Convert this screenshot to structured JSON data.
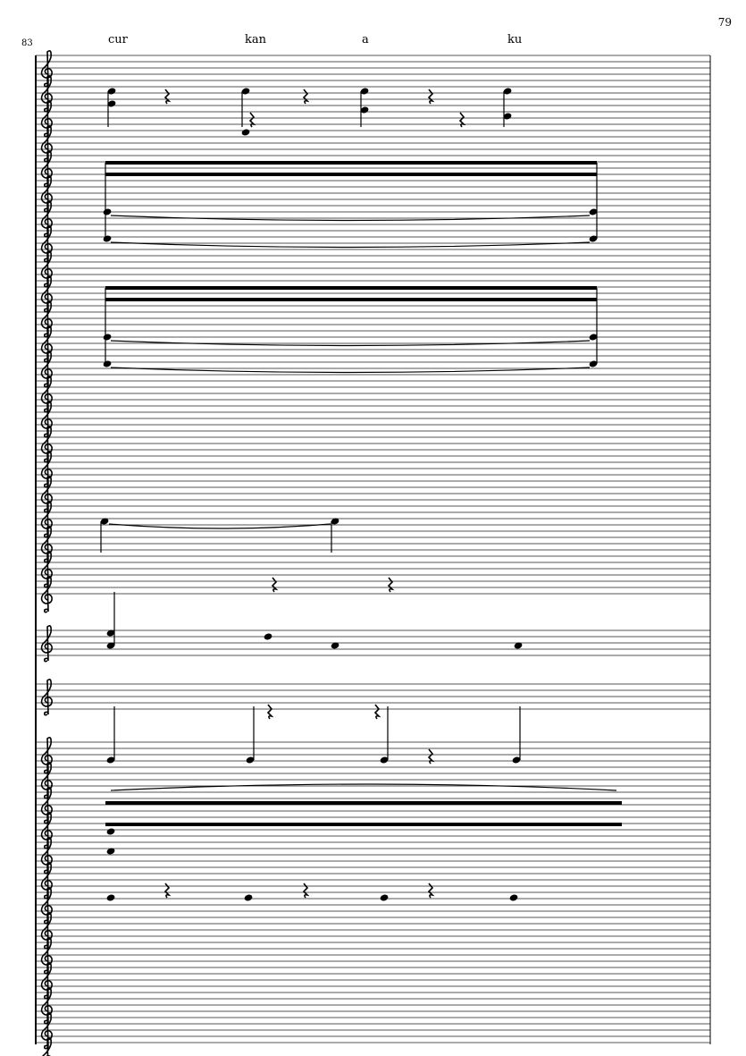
{
  "page": {
    "number": "79"
  },
  "system": {
    "measure_number": "83"
  },
  "lyrics": [
    "cur",
    "kan",
    "a",
    "ku"
  ],
  "colors": {
    "ink": "#000000",
    "staff_line": "#555555",
    "background": "#ffffff"
  }
}
